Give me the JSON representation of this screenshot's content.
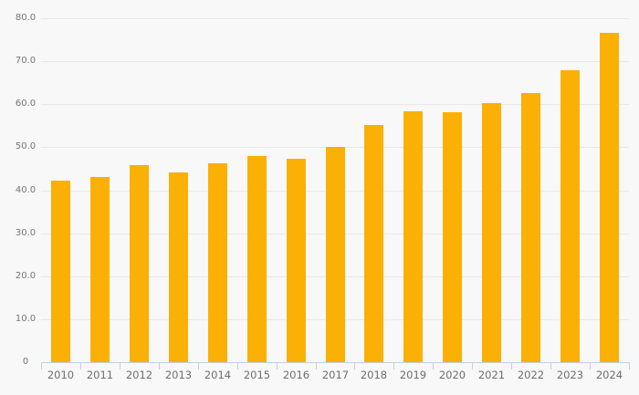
{
  "chart_data": {
    "type": "bar",
    "title": "",
    "xlabel": "",
    "ylabel": "",
    "categories": [
      "2010",
      "2011",
      "2012",
      "2013",
      "2014",
      "2015",
      "2016",
      "2017",
      "2018",
      "2019",
      "2020",
      "2021",
      "2022",
      "2023",
      "2024"
    ],
    "values": [
      42.2,
      43.1,
      45.9,
      44.1,
      46.3,
      47.9,
      47.3,
      50.0,
      55.2,
      58.4,
      58.2,
      60.2,
      62.7,
      67.8,
      76.6
    ],
    "ylim": [
      0,
      80
    ],
    "ytick_step": 10,
    "ytick_labels": [
      "0",
      "10.0",
      "20.0",
      "30.0",
      "40.0",
      "50.0",
      "60.0",
      "70.0",
      "80.0"
    ],
    "grid": true,
    "legend": false,
    "colors": {
      "bar": "#FAB005",
      "background": "#F8F8F8",
      "gridline": "#E8E8E8",
      "axis": "#C3CFE4",
      "y_label_text": "#757575",
      "x_label_text": "#6E6E6E"
    }
  }
}
